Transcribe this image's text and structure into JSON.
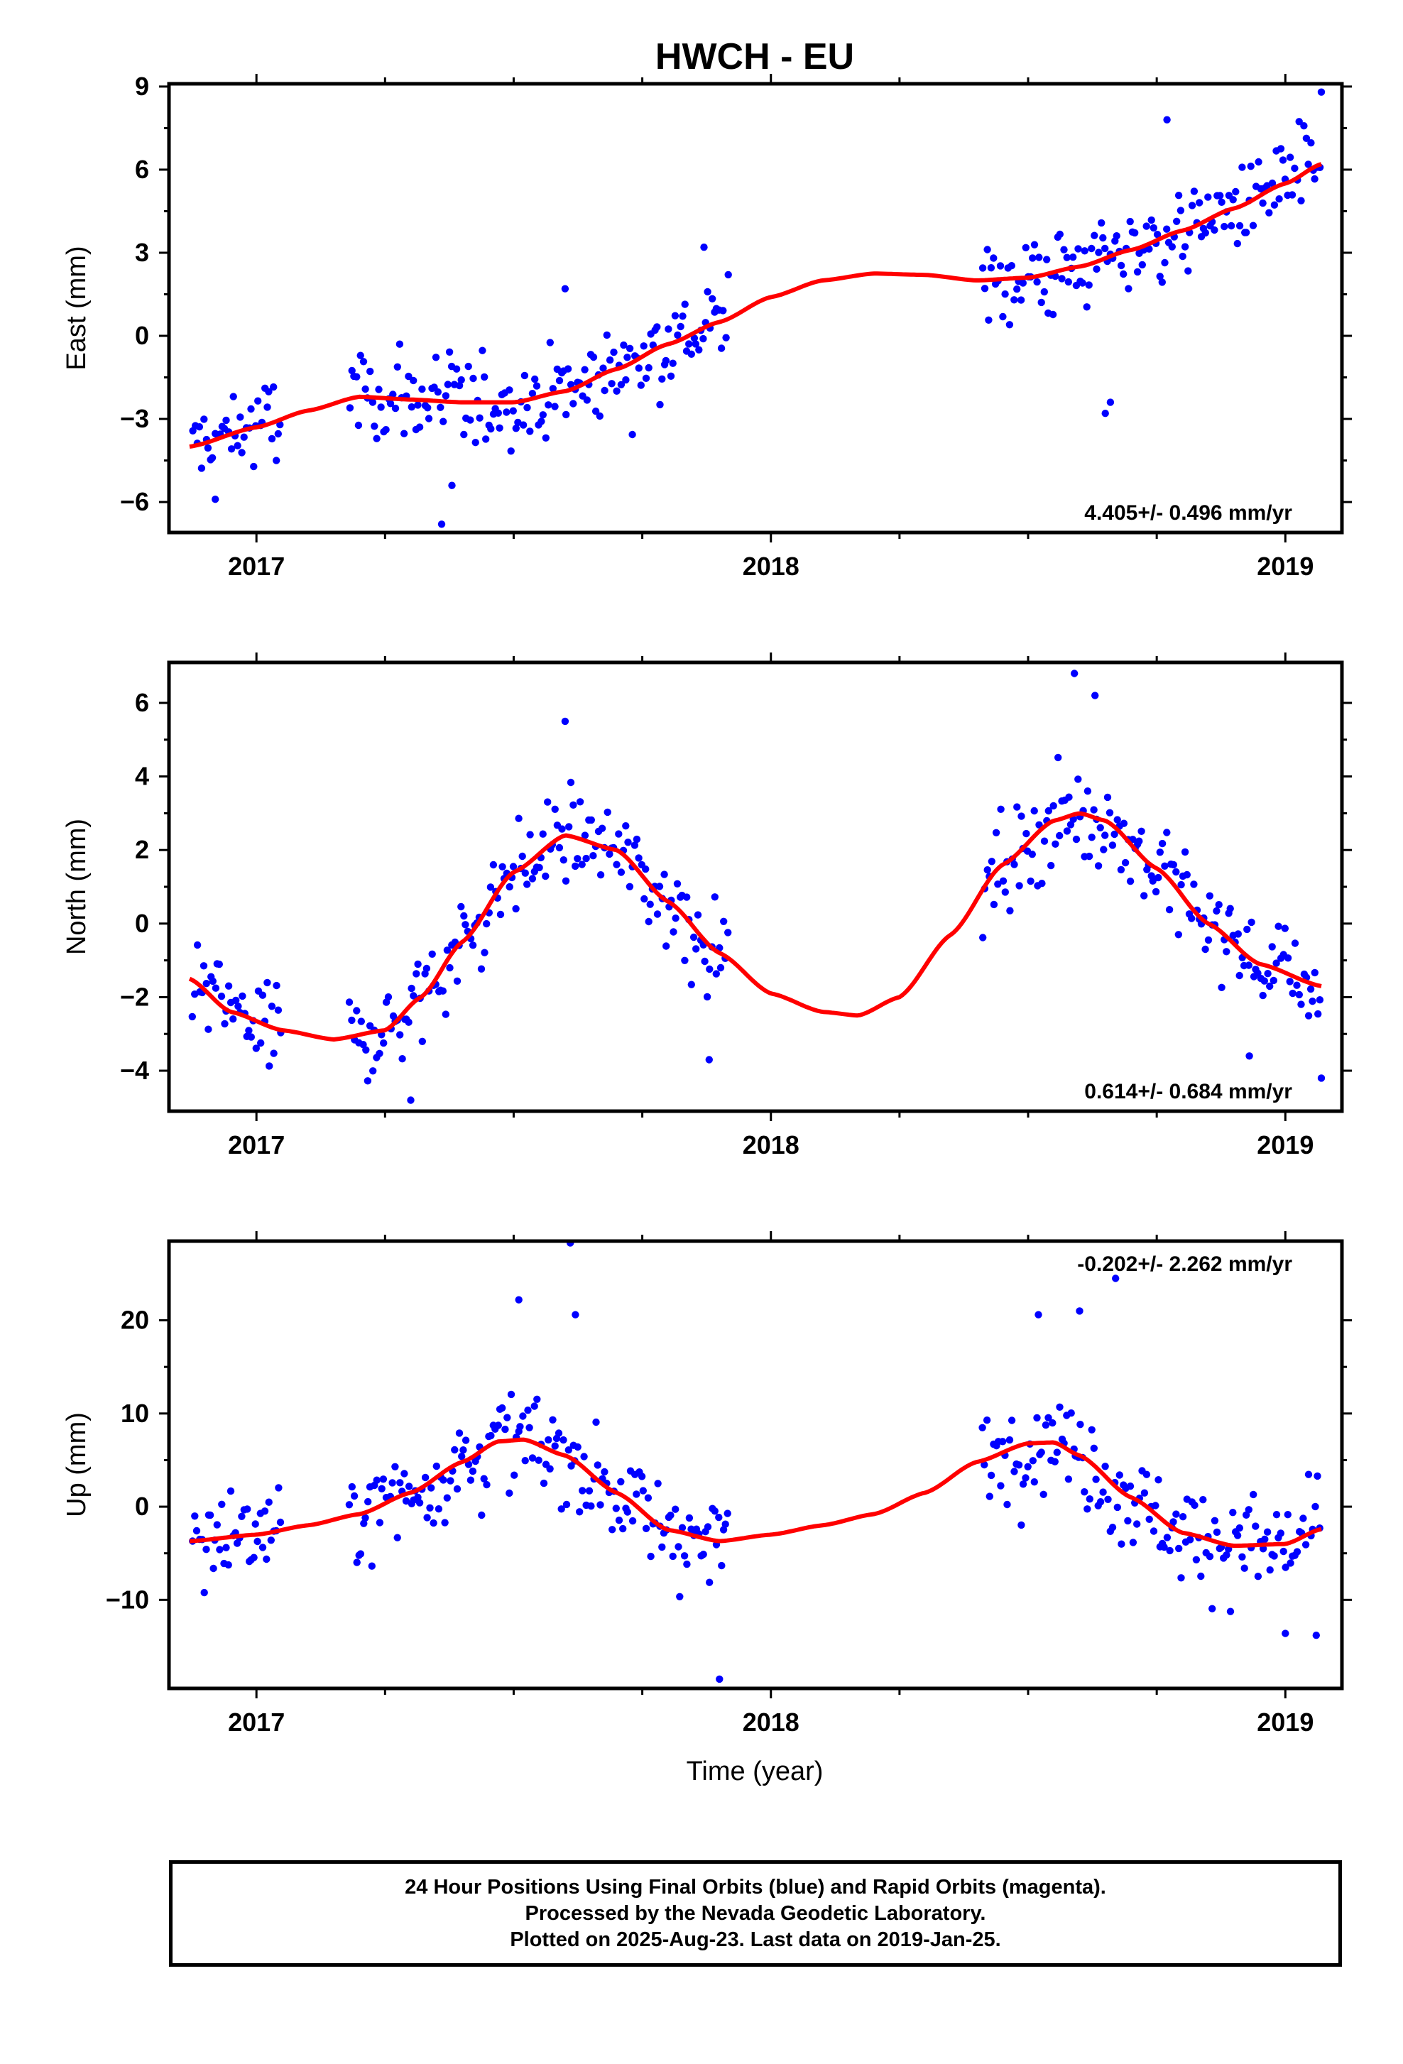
{
  "title": "HWCH - EU",
  "colors": {
    "points": "#0000ff",
    "fit": "#ff0000",
    "axis": "#000000"
  },
  "xlabel": "Time (year)",
  "caption": {
    "line1": "24 Hour Positions Using Final Orbits (blue) and Rapid Orbits (magenta).",
    "line2": "Processed by the Nevada Geodetic Laboratory.",
    "line3": "Plotted on 2025-Aug-23. Last data on 2019-Jan-25."
  },
  "chart_data": [
    {
      "type": "scatter",
      "panel": "east",
      "ylabel": "East (mm)",
      "rate": "4.405+/- 0.496 mm/yr",
      "rate_position": "bottom-right",
      "xlim": [
        2016.83,
        2019.11
      ],
      "ylim": [
        -7.1,
        9.1
      ],
      "xticks": [
        2017,
        2018,
        2019
      ],
      "yticks": [
        -6,
        -3,
        0,
        3,
        6,
        9
      ],
      "data_segments": [
        [
          2016.875,
          2017.05
        ],
        [
          2017.18,
          2017.92
        ],
        [
          2018.41,
          2019.07
        ]
      ],
      "fit": {
        "x": [
          2016.87,
          2017.0,
          2017.1,
          2017.2,
          2017.3,
          2017.4,
          2017.5,
          2017.6,
          2017.7,
          2017.8,
          2017.9,
          2018.0,
          2018.1,
          2018.2,
          2018.3,
          2018.4,
          2018.5,
          2018.6,
          2018.7,
          2018.8,
          2018.9,
          2019.0,
          2019.07
        ],
        "y": [
          -4.0,
          -3.3,
          -2.7,
          -2.2,
          -2.3,
          -2.4,
          -2.4,
          -2.0,
          -1.2,
          -0.3,
          0.5,
          1.4,
          2.0,
          2.25,
          2.2,
          2.0,
          2.1,
          2.5,
          3.1,
          3.8,
          4.6,
          5.5,
          6.2
        ]
      },
      "scatter_sigma": 1.2,
      "outliers": [
        {
          "x": 2017.36,
          "y": -6.8
        },
        {
          "x": 2017.38,
          "y": -5.4
        },
        {
          "x": 2016.92,
          "y": -5.9
        },
        {
          "x": 2018.65,
          "y": -2.8
        },
        {
          "x": 2018.66,
          "y": -2.4
        },
        {
          "x": 2019.07,
          "y": 8.8
        },
        {
          "x": 2018.77,
          "y": 7.8
        },
        {
          "x": 2017.87,
          "y": 3.2
        },
        {
          "x": 2017.6,
          "y": 1.7
        }
      ]
    },
    {
      "type": "scatter",
      "panel": "north",
      "ylabel": "North (mm)",
      "rate": "0.614+/- 0.684 mm/yr",
      "rate_position": "bottom-right",
      "xlim": [
        2016.83,
        2019.11
      ],
      "ylim": [
        -5.1,
        7.1
      ],
      "xticks": [
        2017,
        2018,
        2019
      ],
      "yticks": [
        -4,
        -2,
        0,
        2,
        4,
        6
      ],
      "data_segments": [
        [
          2016.875,
          2017.05
        ],
        [
          2017.18,
          2017.92
        ],
        [
          2018.41,
          2019.07
        ]
      ],
      "fit": {
        "x": [
          2016.87,
          2016.95,
          2017.05,
          2017.15,
          2017.25,
          2017.32,
          2017.4,
          2017.5,
          2017.6,
          2017.7,
          2017.8,
          2017.9,
          2018.0,
          2018.1,
          2018.17,
          2018.25,
          2018.35,
          2018.45,
          2018.55,
          2018.6,
          2018.65,
          2018.75,
          2018.85,
          2018.95,
          2019.07
        ],
        "y": [
          -1.5,
          -2.4,
          -2.9,
          -3.15,
          -2.9,
          -2.0,
          -0.5,
          1.4,
          2.4,
          2.0,
          0.6,
          -0.8,
          -1.9,
          -2.4,
          -2.5,
          -2.0,
          -0.3,
          1.6,
          2.8,
          3.0,
          2.8,
          1.5,
          0.0,
          -1.1,
          -1.7
        ]
      },
      "scatter_sigma": 0.9,
      "outliers": [
        {
          "x": 2018.59,
          "y": 6.8
        },
        {
          "x": 2018.63,
          "y": 6.2
        },
        {
          "x": 2017.6,
          "y": 5.5
        },
        {
          "x": 2017.3,
          "y": -4.8
        },
        {
          "x": 2019.07,
          "y": -4.2
        },
        {
          "x": 2017.88,
          "y": -3.7
        },
        {
          "x": 2018.93,
          "y": -3.6
        }
      ]
    },
    {
      "type": "scatter",
      "panel": "up",
      "ylabel": "Up (mm)",
      "rate": "-0.202+/- 2.262 mm/yr",
      "rate_position": "top-right",
      "xlim": [
        2016.83,
        2019.11
      ],
      "ylim": [
        -19.5,
        28.5
      ],
      "xticks": [
        2017,
        2018,
        2019
      ],
      "yticks": [
        -10,
        0,
        10,
        20
      ],
      "data_segments": [
        [
          2016.875,
          2017.05
        ],
        [
          2017.18,
          2017.92
        ],
        [
          2018.41,
          2019.07
        ]
      ],
      "fit": {
        "x": [
          2016.87,
          2017.0,
          2017.1,
          2017.2,
          2017.3,
          2017.4,
          2017.47,
          2017.52,
          2017.6,
          2017.7,
          2017.8,
          2017.9,
          2018.0,
          2018.1,
          2018.2,
          2018.3,
          2018.4,
          2018.5,
          2018.55,
          2018.6,
          2018.7,
          2018.8,
          2018.9,
          2019.0,
          2019.07
        ],
        "y": [
          -3.7,
          -3.0,
          -2.0,
          -0.8,
          1.5,
          4.8,
          7.0,
          7.2,
          5.5,
          1.5,
          -2.5,
          -3.7,
          -3.0,
          -2.0,
          -0.8,
          1.5,
          4.8,
          6.8,
          6.9,
          5.5,
          1.0,
          -2.8,
          -4.2,
          -4.0,
          -2.4
        ]
      },
      "scatter_sigma": 3.8,
      "outliers": [
        {
          "x": 2017.61,
          "y": 28.3
        },
        {
          "x": 2017.9,
          "y": -18.5
        },
        {
          "x": 2018.67,
          "y": 24.5
        },
        {
          "x": 2017.51,
          "y": 22.2
        },
        {
          "x": 2018.52,
          "y": 20.6
        },
        {
          "x": 2018.6,
          "y": 21.0
        },
        {
          "x": 2017.62,
          "y": 20.6
        },
        {
          "x": 2019.06,
          "y": -13.8
        },
        {
          "x": 2019.0,
          "y": -13.6
        }
      ]
    }
  ]
}
